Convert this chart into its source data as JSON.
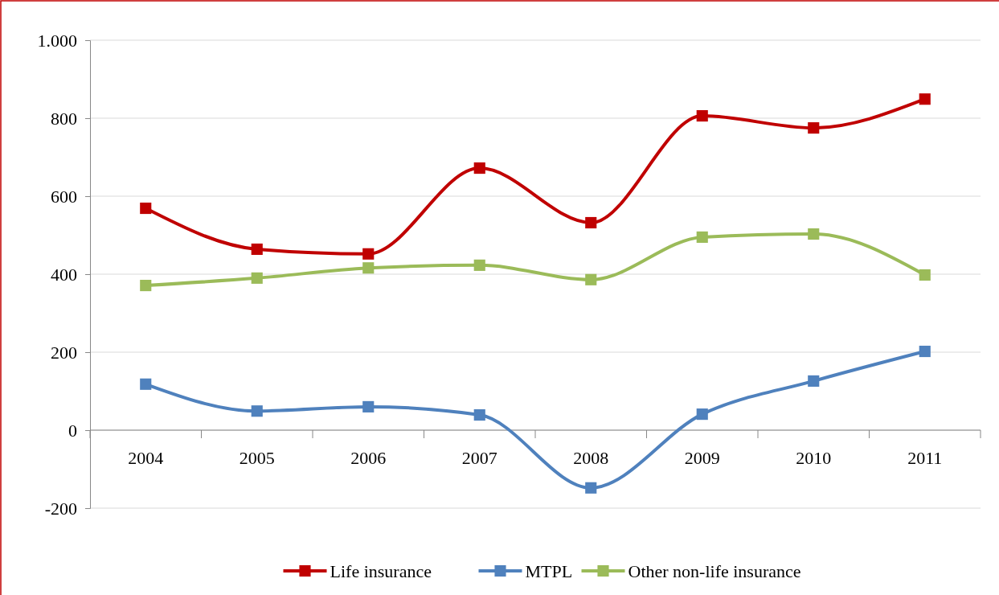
{
  "chart_data": {
    "type": "line",
    "categories": [
      "2004",
      "2005",
      "2006",
      "2007",
      "2008",
      "2009",
      "2010",
      "2011"
    ],
    "series": [
      {
        "name": "Life insurance",
        "color": "#c00000",
        "values": [
          569,
          464,
          452,
          672,
          532,
          806,
          775,
          849
        ]
      },
      {
        "name": "MTPL",
        "color": "#4f81bd",
        "values": [
          118,
          49,
          60,
          39,
          -148,
          41,
          126,
          202
        ]
      },
      {
        "name": "Other non-life insurance",
        "color": "#9bbb59",
        "values": [
          371,
          390,
          416,
          423,
          386,
          495,
          503,
          398
        ]
      }
    ],
    "ylim": [
      -200,
      1000
    ],
    "yticks": [
      -200,
      0,
      200,
      400,
      600,
      800,
      {
        "value": 1000,
        "label": "1.000"
      }
    ],
    "grid": "y",
    "legend": "bottom",
    "marker": "square",
    "line_style": "solid"
  }
}
